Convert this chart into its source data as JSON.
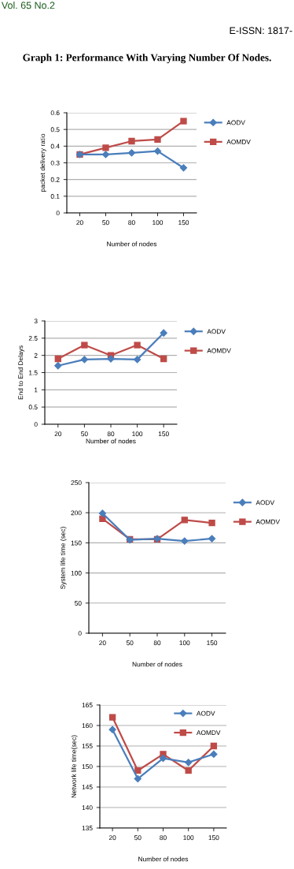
{
  "chart_data": [
    {
      "type": "line",
      "title": "Graph 1: Performance With Varying Number Of Nodes.",
      "annotations": [
        "Vol. 65 No.2",
        "E-ISSN: 1817-"
      ],
      "xlabel": "Number of nodes",
      "ylabel": "packet delivery ratio",
      "categories": [
        "20",
        "50",
        "80",
        "100",
        "150"
      ],
      "series": [
        {
          "name": "AODV",
          "color": "#4a7ebb",
          "marker": "diamond",
          "values": [
            0.35,
            0.35,
            0.36,
            0.37,
            0.27
          ]
        },
        {
          "name": "AOMDV",
          "color": "#be4b48",
          "marker": "square",
          "values": [
            0.35,
            0.39,
            0.43,
            0.44,
            0.55
          ]
        }
      ],
      "ylim": [
        0,
        0.6
      ],
      "yticks": [
        0,
        0.1,
        0.2,
        0.3,
        0.4,
        0.5,
        0.6
      ],
      "grid": "y",
      "legend": "right",
      "line_style": "solid"
    },
    {
      "type": "line",
      "xlabel": "Number of nodes",
      "ylabel": "End to End Delays",
      "categories": [
        "20",
        "50",
        "80",
        "100",
        "150"
      ],
      "series": [
        {
          "name": "AODV",
          "color": "#4a7ebb",
          "marker": "diamond",
          "values": [
            1.7,
            1.88,
            1.9,
            1.88,
            2.65
          ]
        },
        {
          "name": "AOMDV",
          "color": "#be4b48",
          "marker": "square",
          "values": [
            1.9,
            2.3,
            2.0,
            2.3,
            1.9
          ]
        }
      ],
      "ylim": [
        0,
        3
      ],
      "yticks": [
        0,
        0.5,
        1,
        1.5,
        2,
        2.5,
        3
      ],
      "grid": "y",
      "legend": "right",
      "line_style": "solid"
    },
    {
      "type": "line",
      "xlabel": "Number of nodes",
      "ylabel": "System life time (sec)",
      "categories": [
        "20",
        "50",
        "80",
        "100",
        "150"
      ],
      "series": [
        {
          "name": "AODV",
          "color": "#4a7ebb",
          "marker": "diamond",
          "values": [
            199,
            155,
            157,
            153,
            157
          ]
        },
        {
          "name": "AOMDV",
          "color": "#be4b48",
          "marker": "square",
          "values": [
            190,
            156,
            156,
            188,
            183
          ]
        }
      ],
      "ylim": [
        0,
        250
      ],
      "yticks": [
        0,
        50,
        100,
        150,
        200,
        250
      ],
      "grid": "y",
      "legend": "right",
      "line_style": "solid"
    },
    {
      "type": "line",
      "xlabel": "Number of nodes",
      "ylabel": "Network life time(sec)",
      "categories": [
        "20",
        "50",
        "80",
        "100",
        "150"
      ],
      "series": [
        {
          "name": "AODV",
          "color": "#4a7ebb",
          "marker": "diamond",
          "values": [
            159,
            147,
            152,
            151,
            153
          ]
        },
        {
          "name": "AOMDV",
          "color": "#be4b48",
          "marker": "square",
          "values": [
            162,
            149,
            153,
            149,
            155
          ]
        }
      ],
      "ylim": [
        135,
        165
      ],
      "yticks": [
        135,
        140,
        145,
        150,
        155,
        160,
        165
      ],
      "grid": "y",
      "legend": "top right",
      "line_style": "solid"
    }
  ]
}
